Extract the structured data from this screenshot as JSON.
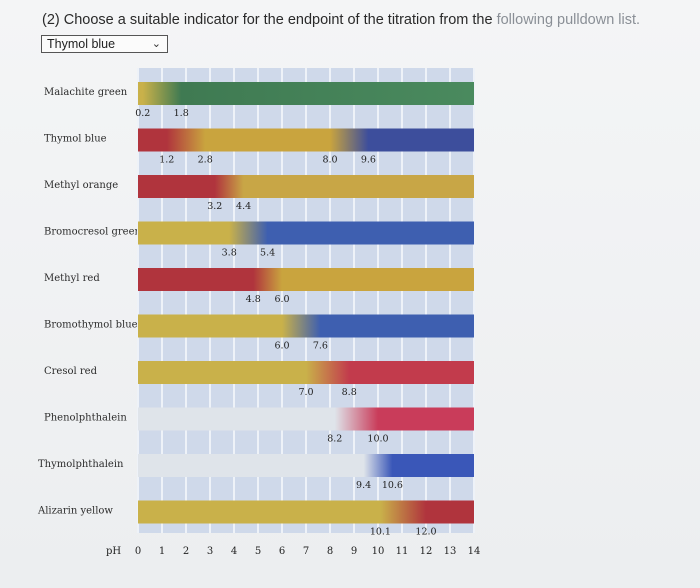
{
  "question": {
    "prefix": "(2) Choose a suitable indicator for the endpoint of the titration from the ",
    "suffix": "following pulldown list."
  },
  "dropdown": {
    "selected": "Thymol blue",
    "icon": "chevron-down-icon"
  },
  "chart_data": {
    "type": "range-chart",
    "x_label": "pH",
    "x_range": [
      0,
      14
    ],
    "ticks": [
      "0",
      "1",
      "2",
      "3",
      "4",
      "5",
      "6",
      "7",
      "8",
      "9",
      "10",
      "11",
      "12",
      "13",
      "14"
    ],
    "indicators": [
      {
        "name": "Malachite green",
        "transitions": [
          {
            "low": "0.2",
            "high": "1.8",
            "from": "#c9b14a",
            "to": "#3f7a52"
          }
        ],
        "end": "#4a8a5e"
      },
      {
        "name": "Thymol blue",
        "transitions": [
          {
            "low": "1.2",
            "high": "2.8",
            "from": "#b0343d",
            "to": "#c9a43e"
          },
          {
            "low": "8.0",
            "high": "9.6",
            "from": "#c9a43e",
            "to": "#3d4e9c"
          }
        ],
        "end": "#3d4e9c"
      },
      {
        "name": "Methyl orange",
        "transitions": [
          {
            "low": "3.2",
            "high": "4.4",
            "from": "#b0343d",
            "to": "#c8a646"
          }
        ],
        "end": "#c8a646"
      },
      {
        "name": "Bromocresol green",
        "transitions": [
          {
            "low": "3.8",
            "high": "5.4",
            "from": "#c9b14a",
            "to": "#3e5fb0"
          }
        ],
        "end": "#3e5fb0"
      },
      {
        "name": "Methyl red",
        "transitions": [
          {
            "low": "4.8",
            "high": "6.0",
            "from": "#b0343d",
            "to": "#c9a43e"
          }
        ],
        "end": "#c9a43e"
      },
      {
        "name": "Bromothymol blue",
        "transitions": [
          {
            "low": "6.0",
            "high": "7.6",
            "from": "#c9b14a",
            "to": "#3e5fb0"
          }
        ],
        "end": "#3e5fb0"
      },
      {
        "name": "Cresol red",
        "transitions": [
          {
            "low": "7.0",
            "high": "8.8",
            "from": "#c9b14a",
            "to": "#c23b4c"
          }
        ],
        "end": "#c23b4c"
      },
      {
        "name": "Phenolphthalein",
        "transitions": [
          {
            "low": "8.2",
            "high": "10.0",
            "from": "#dfe4ea",
            "to": "#c93c5a"
          }
        ],
        "end": "#c93c5a"
      },
      {
        "name": "Thymolphthalein",
        "transitions": [
          {
            "low": "9.4",
            "high": "10.6",
            "from": "#dfe4ea",
            "to": "#3a57b8"
          }
        ],
        "end": "#3a57b8"
      },
      {
        "name": "Alizarin yellow",
        "transitions": [
          {
            "low": "10.1",
            "high": "12.0",
            "from": "#c9b14a",
            "to": "#b0343d"
          }
        ],
        "end": "#b0343d"
      }
    ]
  }
}
